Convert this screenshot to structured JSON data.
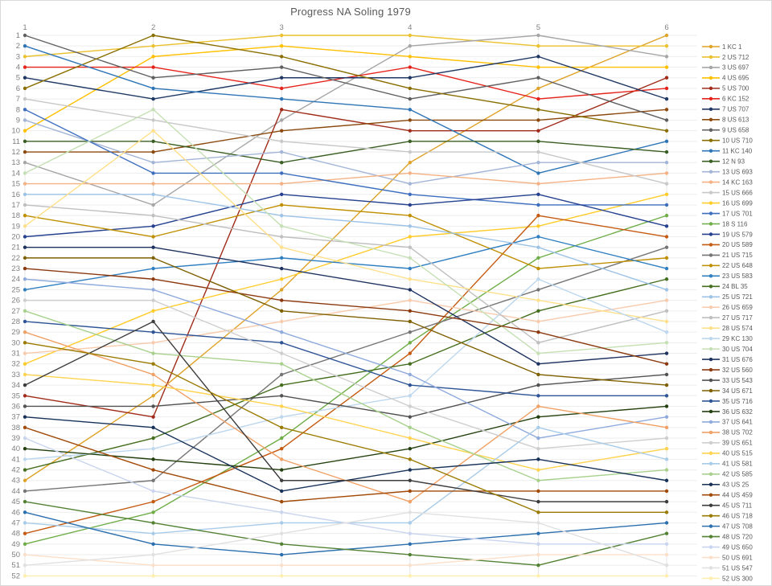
{
  "title": "Progress NA Soling 1979",
  "chart_data": {
    "type": "line",
    "subtype": "bump-rank-progress",
    "xlabel": "",
    "ylabel": "",
    "x_labels": [
      "1",
      "2",
      "3",
      "4",
      "5",
      "6"
    ],
    "ylim": [
      1,
      52
    ],
    "y_inverted": true,
    "y_tick_step": 1,
    "grid": true,
    "legend_position": "right",
    "axis_color": "#7f7f7f",
    "grid_color": "#ededed",
    "legend_text_color": "#595959",
    "series": [
      {
        "name": "1 KC 1",
        "color": "#DFA32A",
        "positions": [
          43,
          35,
          25,
          13,
          6,
          1
        ]
      },
      {
        "name": "2 US 712",
        "color": "#EBC12E",
        "positions": [
          3,
          2,
          1,
          1,
          2,
          2
        ]
      },
      {
        "name": "3 US 697",
        "color": "#A6A6A6",
        "positions": [
          13,
          17,
          9,
          2,
          1,
          3
        ]
      },
      {
        "name": "4 US 695",
        "color": "#FFC000",
        "positions": [
          10,
          3,
          2,
          3,
          4,
          4
        ]
      },
      {
        "name": "5 US 700",
        "color": "#A02B1A",
        "positions": [
          35,
          37,
          8,
          10,
          10,
          5
        ]
      },
      {
        "name": "6 KC 152",
        "color": "#E5231B",
        "positions": [
          4,
          4,
          6,
          4,
          7,
          6
        ]
      },
      {
        "name": "7 US 707",
        "color": "#1F3864",
        "positions": [
          5,
          7,
          5,
          5,
          3,
          7
        ]
      },
      {
        "name": "8 US 613",
        "color": "#8C4A0E",
        "positions": [
          12,
          12,
          10,
          9,
          9,
          8
        ]
      },
      {
        "name": "9 US 658",
        "color": "#5F5F5F",
        "positions": [
          1,
          5,
          4,
          7,
          5,
          9
        ]
      },
      {
        "name": "10 US 710",
        "color": "#8A6F00",
        "positions": [
          6,
          1,
          3,
          6,
          8,
          10
        ]
      },
      {
        "name": "11 KC 140",
        "color": "#2E75B6",
        "positions": [
          2,
          6,
          7,
          8,
          14,
          11
        ]
      },
      {
        "name": "12 N 93",
        "color": "#3A5F23",
        "positions": [
          11,
          11,
          13,
          11,
          11,
          12
        ]
      },
      {
        "name": "13 US 693",
        "color": "#A3B5D6",
        "positions": [
          9,
          13,
          12,
          15,
          13,
          13
        ]
      },
      {
        "name": "14 KC 163",
        "color": "#F4B183",
        "positions": [
          15,
          15,
          15,
          14,
          15,
          14
        ]
      },
      {
        "name": "15 US 666",
        "color": "#C8C8C8",
        "positions": [
          7,
          9,
          11,
          12,
          12,
          15
        ]
      },
      {
        "name": "16 US 699",
        "color": "#FFCC2A",
        "positions": [
          32,
          27,
          24,
          20,
          19,
          16
        ]
      },
      {
        "name": "17 US 701",
        "color": "#3E6FBF",
        "positions": [
          8,
          14,
          14,
          16,
          17,
          17
        ]
      },
      {
        "name": "18 S 116",
        "color": "#6FAD47",
        "positions": [
          49,
          46,
          39,
          30,
          22,
          18
        ]
      },
      {
        "name": "19 US 579",
        "color": "#26418F",
        "positions": [
          20,
          19,
          16,
          17,
          16,
          19
        ]
      },
      {
        "name": "20 US 589",
        "color": "#C55A11",
        "positions": [
          48,
          45,
          40,
          31,
          18,
          20
        ]
      },
      {
        "name": "21 US 715",
        "color": "#757575",
        "positions": [
          44,
          43,
          33,
          29,
          25,
          21
        ]
      },
      {
        "name": "22 US 648",
        "color": "#BF8F00",
        "positions": [
          18,
          20,
          17,
          18,
          23,
          22
        ]
      },
      {
        "name": "23 US 583",
        "color": "#2F7FC1",
        "positions": [
          25,
          23,
          22,
          23,
          20,
          23
        ]
      },
      {
        "name": "24 BL 35",
        "color": "#456E1F",
        "positions": [
          42,
          39,
          34,
          32,
          27,
          24
        ]
      },
      {
        "name": "25 US 721",
        "color": "#9DC3E6",
        "positions": [
          16,
          16,
          18,
          19,
          21,
          25
        ]
      },
      {
        "name": "26 US 659",
        "color": "#F8CBAD",
        "positions": [
          31,
          30,
          28,
          26,
          28,
          26
        ]
      },
      {
        "name": "27 US 717",
        "color": "#BFBFBF",
        "positions": [
          17,
          18,
          20,
          21,
          30,
          27
        ]
      },
      {
        "name": "28 US 574",
        "color": "#FFE08A",
        "positions": [
          19,
          10,
          21,
          24,
          26,
          28
        ]
      },
      {
        "name": "29 KC 130",
        "color": "#BDD7EE",
        "positions": [
          41,
          40,
          37,
          35,
          24,
          29
        ]
      },
      {
        "name": "30 US 704",
        "color": "#C5E0B4",
        "positions": [
          14,
          8,
          19,
          22,
          31,
          30
        ]
      },
      {
        "name": "31 US 676",
        "color": "#1E3260",
        "positions": [
          21,
          21,
          23,
          25,
          32,
          31
        ]
      },
      {
        "name": "32 US 560",
        "color": "#8C3A10",
        "positions": [
          23,
          24,
          26,
          27,
          29,
          32
        ]
      },
      {
        "name": "33 US 543",
        "color": "#525252",
        "positions": [
          36,
          36,
          35,
          37,
          34,
          33
        ]
      },
      {
        "name": "34 US 671",
        "color": "#7F6000",
        "positions": [
          22,
          22,
          27,
          28,
          33,
          34
        ]
      },
      {
        "name": "35 US 716",
        "color": "#2F5597",
        "positions": [
          28,
          29,
          30,
          34,
          35,
          35
        ]
      },
      {
        "name": "36 US 632",
        "color": "#24400F",
        "positions": [
          40,
          41,
          42,
          40,
          37,
          36
        ]
      },
      {
        "name": "37 US 641",
        "color": "#8FAADC",
        "positions": [
          24,
          25,
          29,
          33,
          39,
          37
        ]
      },
      {
        "name": "38 US 702",
        "color": "#F0A165",
        "positions": [
          29,
          33,
          41,
          45,
          36,
          38
        ]
      },
      {
        "name": "39 US 651",
        "color": "#CFCDCD",
        "positions": [
          26,
          26,
          31,
          36,
          40,
          39
        ]
      },
      {
        "name": "40 US 515",
        "color": "#FFD34D",
        "positions": [
          33,
          34,
          36,
          39,
          42,
          40
        ]
      },
      {
        "name": "41 US 581",
        "color": "#A8CBE8",
        "positions": [
          47,
          48,
          47,
          47,
          38,
          41
        ]
      },
      {
        "name": "42 US 585",
        "color": "#A9D18E",
        "positions": [
          27,
          31,
          32,
          38,
          43,
          42
        ]
      },
      {
        "name": "43 US 25",
        "color": "#173158",
        "positions": [
          37,
          38,
          44,
          42,
          41,
          43
        ]
      },
      {
        "name": "44 US 459",
        "color": "#A24A08",
        "positions": [
          38,
          42,
          45,
          44,
          44,
          44
        ]
      },
      {
        "name": "45 US 711",
        "color": "#3F3C3C",
        "positions": [
          34,
          28,
          43,
          43,
          45,
          45
        ]
      },
      {
        "name": "46 US 718",
        "color": "#9A7B00",
        "positions": [
          30,
          32,
          38,
          41,
          46,
          46
        ]
      },
      {
        "name": "47 US 708",
        "color": "#2C6FAE",
        "positions": [
          46,
          49,
          50,
          49,
          48,
          47
        ]
      },
      {
        "name": "48 US 720",
        "color": "#548235",
        "positions": [
          45,
          47,
          49,
          50,
          51,
          48
        ]
      },
      {
        "name": "49 US 650",
        "color": "#C9D4EE",
        "positions": [
          39,
          44,
          46,
          48,
          49,
          49
        ]
      },
      {
        "name": "50 US 691",
        "color": "#FBDFC9",
        "positions": [
          50,
          51,
          51,
          51,
          50,
          50
        ]
      },
      {
        "name": "51 US 547",
        "color": "#E0E0E0",
        "positions": [
          51,
          50,
          48,
          46,
          47,
          51
        ]
      },
      {
        "name": "52 US 300",
        "color": "#FFEFAF",
        "positions": [
          52,
          52,
          52,
          52,
          52,
          52
        ]
      }
    ]
  }
}
